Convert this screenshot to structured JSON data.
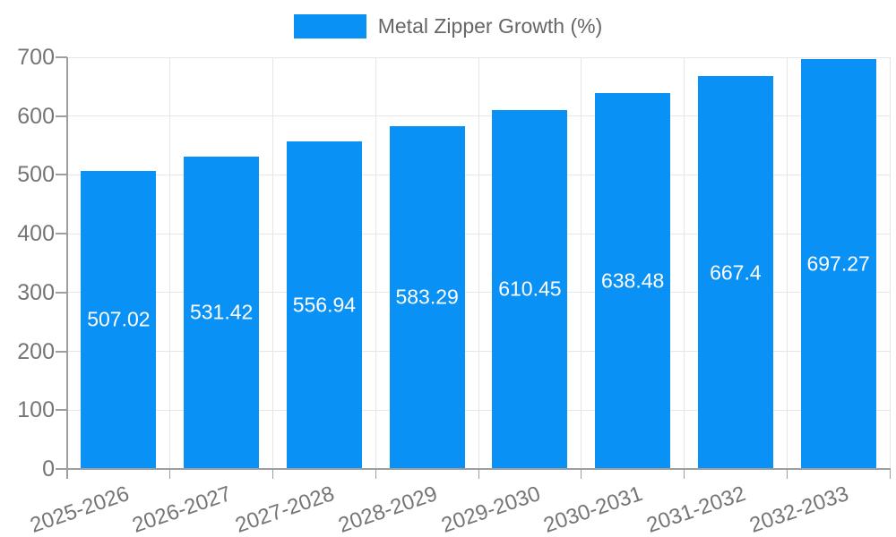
{
  "chart_data": {
    "type": "bar",
    "title": "Metal Zipper Growth (%)",
    "legend": [
      "Metal Zipper Growth (%)"
    ],
    "legend_position": "top-center",
    "categories": [
      "2025-2026",
      "2026-2027",
      "2027-2028",
      "2028-2029",
      "2029-2030",
      "2030-2031",
      "2031-2032",
      "2032-2033"
    ],
    "values": [
      507.02,
      531.42,
      556.94,
      583.29,
      610.45,
      638.48,
      667.4,
      697.27
    ],
    "bar_labels": [
      "507.02",
      "531.42",
      "556.94",
      "583.29",
      "610.45",
      "638.48",
      "667.4",
      "697.27"
    ],
    "xlabel": "",
    "ylabel": "",
    "ylim": [
      0,
      700
    ],
    "ytick_step": 100,
    "ytick_labels": [
      "0",
      "100",
      "200",
      "300",
      "400",
      "500",
      "600",
      "700"
    ],
    "grid": true,
    "x_labels_rotation_deg": -19,
    "colors": {
      "bar": "#0a91f5",
      "grid": "#e6e6e6",
      "axis": "#9e9e9e",
      "tick_text": "#757575",
      "legend_text": "#666666",
      "bar_label_text": "#ffffff",
      "background": "#ffffff"
    }
  }
}
